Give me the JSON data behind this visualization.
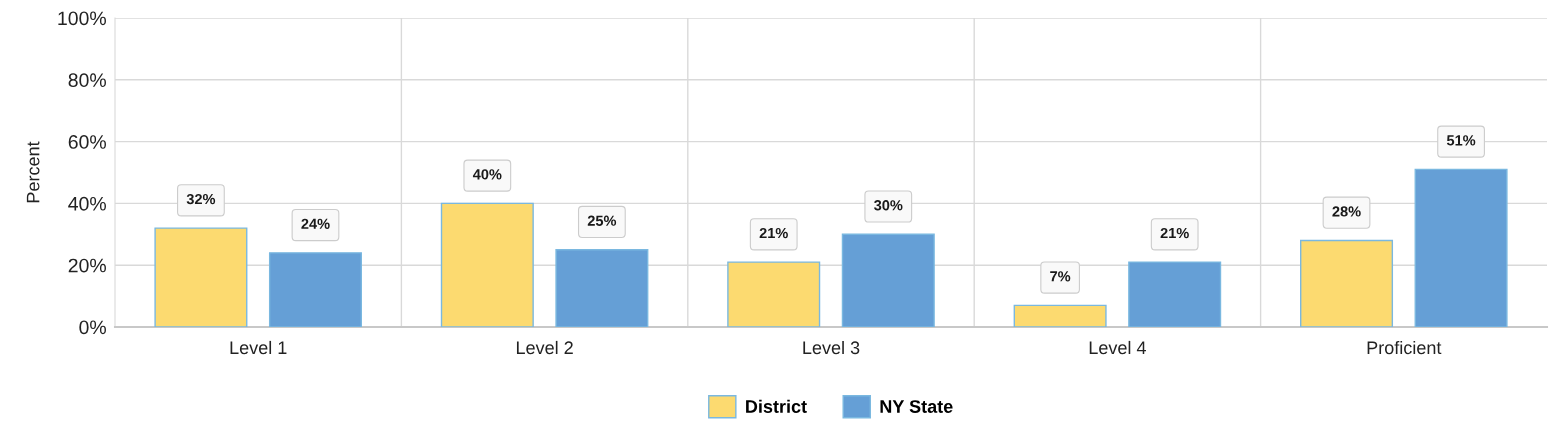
{
  "chart_data": {
    "type": "bar",
    "ylabel": "Percent",
    "categories": [
      "Level 1",
      "Level 2",
      "Level 3",
      "Level 4",
      "Proficient"
    ],
    "series": [
      {
        "name": "District",
        "color": "#fcda70",
        "values": [
          32,
          40,
          21,
          7,
          28
        ]
      },
      {
        "name": "NY State",
        "color": "#659fd6",
        "values": [
          24,
          25,
          30,
          21,
          51
        ]
      }
    ],
    "ylim": [
      0,
      100
    ],
    "yticks": [
      {
        "value": 0,
        "label": "0%"
      },
      {
        "value": 20,
        "label": "20%"
      },
      {
        "value": 40,
        "label": "40%"
      },
      {
        "value": 60,
        "label": "60%"
      },
      {
        "value": 80,
        "label": "80%"
      },
      {
        "value": 100,
        "label": "100%"
      }
    ],
    "value_labels": [
      [
        "32%",
        "40%",
        "21%",
        "7%",
        "28%"
      ],
      [
        "24%",
        "25%",
        "30%",
        "21%",
        "51%"
      ]
    ],
    "grid": true,
    "legend": "bottom"
  }
}
